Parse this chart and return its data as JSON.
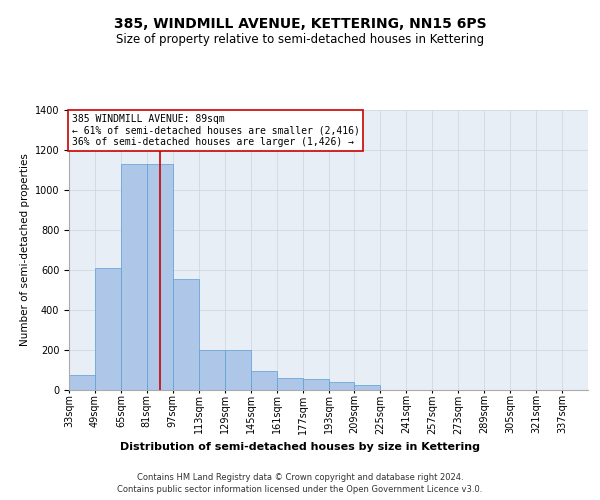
{
  "title": "385, WINDMILL AVENUE, KETTERING, NN15 6PS",
  "subtitle": "Size of property relative to semi-detached houses in Kettering",
  "xlabel": "Distribution of semi-detached houses by size in Kettering",
  "ylabel": "Number of semi-detached properties",
  "footnote1": "Contains HM Land Registry data © Crown copyright and database right 2024.",
  "footnote2": "Contains public sector information licensed under the Open Government Licence v3.0.",
  "annotation_title": "385 WINDMILL AVENUE: 89sqm",
  "annotation_line1": "← 61% of semi-detached houses are smaller (2,416)",
  "annotation_line2": "36% of semi-detached houses are larger (1,426) →",
  "bar_edges": [
    33,
    49,
    65,
    81,
    97,
    113,
    129,
    145,
    161,
    177,
    193,
    209,
    225,
    241,
    257,
    273,
    289,
    305,
    321,
    337,
    353
  ],
  "bar_values": [
    75,
    610,
    1130,
    1130,
    555,
    200,
    200,
    95,
    60,
    55,
    40,
    25,
    0,
    0,
    0,
    0,
    0,
    0,
    0,
    0
  ],
  "bar_color": "#aec6e8",
  "bar_edgecolor": "#5a9fd4",
  "vline_color": "#cc0000",
  "vline_x": 89,
  "annotation_box_color": "#cc0000",
  "ylim": [
    0,
    1400
  ],
  "yticks": [
    0,
    200,
    400,
    600,
    800,
    1000,
    1200,
    1400
  ],
  "grid_color": "#d0d8e4",
  "bg_color": "#e8eef5",
  "title_fontsize": 10,
  "subtitle_fontsize": 8.5,
  "ylabel_fontsize": 7.5,
  "xlabel_fontsize": 8,
  "tick_fontsize": 7,
  "footnote_fontsize": 6,
  "annot_fontsize": 7
}
